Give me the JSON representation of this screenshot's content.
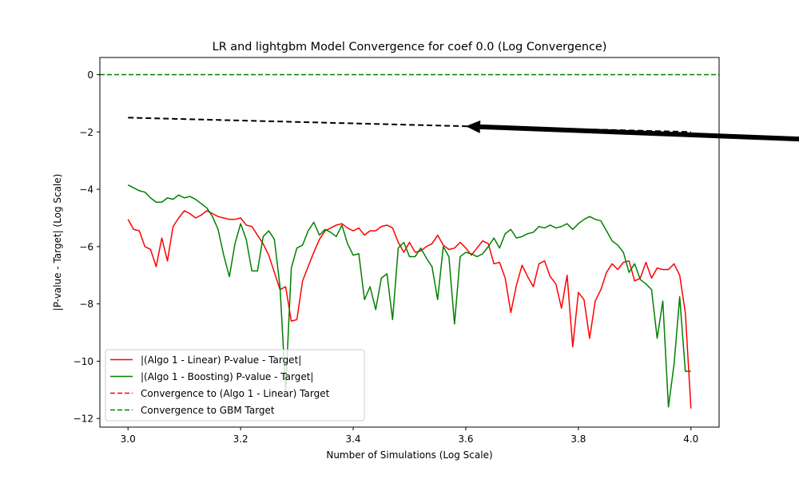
{
  "chart_data": {
    "type": "line",
    "title": "LR and lightgbm Model Convergence for coef 0.0 (Log Convergence)",
    "xlabel": "Number of Simulations (Log Scale)",
    "ylabel": "|P-value - Target| (Log Scale)",
    "xlim": [
      2.95,
      4.05
    ],
    "ylim": [
      -12.3,
      0.6
    ],
    "xticks": [
      3.0,
      3.2,
      3.4,
      3.6,
      3.8,
      4.0
    ],
    "xtick_labels": [
      "3.0",
      "3.2",
      "3.4",
      "3.6",
      "3.8",
      "4.0"
    ],
    "yticks": [
      0,
      -2,
      -4,
      -6,
      -8,
      -10,
      -12
    ],
    "ytick_labels": [
      "0",
      "−2",
      "−4",
      "−6",
      "−8",
      "−10",
      "−12"
    ],
    "grid": false,
    "legend_position": "lower-left",
    "series": [
      {
        "name": "|(Algo 1 - Linear) P-value - Target|",
        "color": "#ff0000",
        "style": "solid",
        "x": [
          3.0,
          3.01,
          3.02,
          3.03,
          3.04,
          3.05,
          3.06,
          3.07,
          3.08,
          3.09,
          3.1,
          3.11,
          3.12,
          3.13,
          3.14,
          3.15,
          3.16,
          3.17,
          3.18,
          3.19,
          3.2,
          3.21,
          3.22,
          3.23,
          3.24,
          3.25,
          3.26,
          3.27,
          3.28,
          3.29,
          3.3,
          3.31,
          3.32,
          3.33,
          3.34,
          3.35,
          3.36,
          3.37,
          3.38,
          3.39,
          3.4,
          3.41,
          3.42,
          3.43,
          3.44,
          3.45,
          3.46,
          3.47,
          3.48,
          3.49,
          3.5,
          3.51,
          3.52,
          3.53,
          3.54,
          3.55,
          3.56,
          3.57,
          3.58,
          3.59,
          3.6,
          3.61,
          3.62,
          3.63,
          3.64,
          3.65,
          3.66,
          3.67,
          3.68,
          3.69,
          3.7,
          3.71,
          3.72,
          3.73,
          3.74,
          3.75,
          3.76,
          3.77,
          3.78,
          3.79,
          3.8,
          3.81,
          3.82,
          3.83,
          3.84,
          3.85,
          3.86,
          3.87,
          3.88,
          3.89,
          3.9,
          3.91,
          3.92,
          3.93,
          3.94,
          3.95,
          3.96,
          3.97,
          3.98,
          3.99,
          4.0
        ],
        "y": [
          -5.05,
          -5.4,
          -5.45,
          -6.0,
          -6.1,
          -6.7,
          -5.7,
          -6.5,
          -5.3,
          -5.0,
          -4.75,
          -4.85,
          -5.0,
          -4.9,
          -4.75,
          -4.85,
          -4.95,
          -5.0,
          -5.05,
          -5.05,
          -5.0,
          -5.25,
          -5.3,
          -5.6,
          -5.9,
          -6.3,
          -6.9,
          -7.5,
          -7.4,
          -8.6,
          -8.55,
          -7.2,
          -6.7,
          -6.2,
          -5.75,
          -5.45,
          -5.35,
          -5.25,
          -5.2,
          -5.35,
          -5.45,
          -5.35,
          -5.6,
          -5.45,
          -5.45,
          -5.3,
          -5.25,
          -5.35,
          -5.85,
          -6.2,
          -5.85,
          -6.2,
          -6.15,
          -6.0,
          -5.9,
          -5.6,
          -5.95,
          -6.1,
          -6.05,
          -5.85,
          -6.05,
          -6.3,
          -6.05,
          -5.8,
          -5.9,
          -6.6,
          -6.55,
          -7.1,
          -8.3,
          -7.35,
          -6.65,
          -7.05,
          -7.4,
          -6.6,
          -6.5,
          -7.05,
          -7.3,
          -8.15,
          -7.0,
          -9.5,
          -7.6,
          -7.85,
          -9.2,
          -7.9,
          -7.5,
          -6.9,
          -6.6,
          -6.8,
          -6.55,
          -6.5,
          -7.2,
          -7.1,
          -6.55,
          -7.1,
          -6.75,
          -6.8,
          -6.8,
          -6.6,
          -7.0,
          -8.3,
          -11.65
        ]
      },
      {
        "name": "|(Algo 1 - Boosting) P-value - Target|",
        "color": "#008000",
        "style": "solid",
        "x": [
          3.0,
          3.01,
          3.02,
          3.03,
          3.04,
          3.05,
          3.06,
          3.07,
          3.08,
          3.09,
          3.1,
          3.11,
          3.12,
          3.13,
          3.14,
          3.15,
          3.16,
          3.17,
          3.18,
          3.19,
          3.2,
          3.21,
          3.22,
          3.23,
          3.24,
          3.25,
          3.26,
          3.27,
          3.28,
          3.29,
          3.3,
          3.31,
          3.32,
          3.33,
          3.34,
          3.35,
          3.36,
          3.37,
          3.38,
          3.39,
          3.4,
          3.41,
          3.42,
          3.43,
          3.44,
          3.45,
          3.46,
          3.47,
          3.48,
          3.49,
          3.5,
          3.51,
          3.52,
          3.53,
          3.54,
          3.55,
          3.56,
          3.57,
          3.58,
          3.59,
          3.6,
          3.61,
          3.62,
          3.63,
          3.64,
          3.65,
          3.66,
          3.67,
          3.68,
          3.69,
          3.7,
          3.71,
          3.72,
          3.73,
          3.74,
          3.75,
          3.76,
          3.77,
          3.78,
          3.79,
          3.8,
          3.81,
          3.82,
          3.83,
          3.84,
          3.85,
          3.86,
          3.87,
          3.88,
          3.89,
          3.9,
          3.91,
          3.92,
          3.93,
          3.94,
          3.95,
          3.96,
          3.97,
          3.98,
          3.99,
          4.0
        ],
        "y": [
          -3.85,
          -3.95,
          -4.05,
          -4.1,
          -4.3,
          -4.45,
          -4.45,
          -4.3,
          -4.35,
          -4.2,
          -4.3,
          -4.25,
          -4.35,
          -4.5,
          -4.65,
          -4.95,
          -5.4,
          -6.3,
          -7.05,
          -5.9,
          -5.2,
          -5.75,
          -6.85,
          -6.85,
          -5.65,
          -5.45,
          -5.75,
          -7.4,
          -11.0,
          -6.75,
          -6.05,
          -5.95,
          -5.45,
          -5.15,
          -5.6,
          -5.4,
          -5.5,
          -5.65,
          -5.25,
          -5.9,
          -6.3,
          -6.25,
          -7.85,
          -7.4,
          -8.2,
          -7.1,
          -6.95,
          -8.55,
          -6.05,
          -5.85,
          -6.35,
          -6.35,
          -6.05,
          -6.4,
          -6.7,
          -7.85,
          -6.0,
          -6.35,
          -8.7,
          -6.35,
          -6.2,
          -6.25,
          -6.35,
          -6.25,
          -6.0,
          -5.7,
          -6.05,
          -5.55,
          -5.4,
          -5.7,
          -5.65,
          -5.55,
          -5.5,
          -5.3,
          -5.35,
          -5.25,
          -5.35,
          -5.3,
          -5.2,
          -5.4,
          -5.2,
          -5.05,
          -4.95,
          -5.05,
          -5.1,
          -5.45,
          -5.8,
          -5.95,
          -6.2,
          -6.9,
          -6.6,
          -7.15,
          -7.3,
          -7.5,
          -9.2,
          -7.9,
          -11.6,
          -10.1,
          -7.75,
          -10.35,
          -10.35
        ]
      },
      {
        "name": "Convergence to (Algo 1 - Linear) Target",
        "color": "#ff0000",
        "style": "dashed",
        "x": [],
        "y": []
      },
      {
        "name": "Convergence to GBM Target",
        "color": "#008000",
        "style": "dashed",
        "x": [
          2.95,
          4.05
        ],
        "y": [
          0,
          0
        ]
      },
      {
        "name": "",
        "color": "#000000",
        "style": "dashed",
        "x": [
          3.0,
          4.0
        ],
        "y": [
          -1.5,
          -2.0
        ]
      }
    ],
    "annotations": [
      {
        "type": "arrow",
        "from": [
          4.2,
          -2.25
        ],
        "to": [
          3.6,
          -1.8
        ],
        "color": "#000000"
      }
    ]
  }
}
